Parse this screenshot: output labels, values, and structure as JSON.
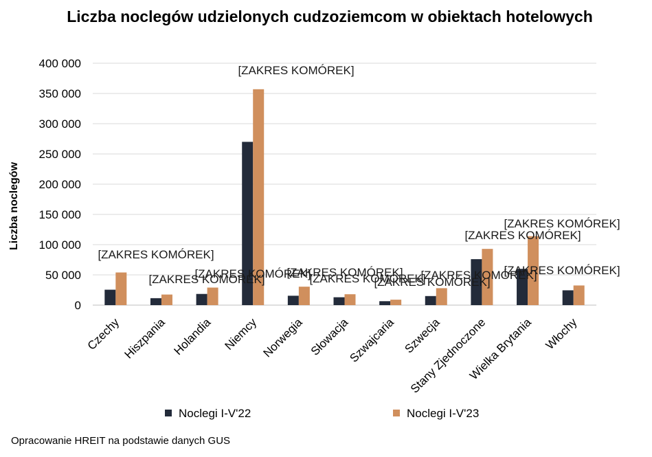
{
  "source_note": "Opracowanie HREIT na podstawie danych GUS",
  "chart_data": {
    "type": "bar",
    "title": "Liczba noclegów udzielonych cudzoziemcom w obiektach hotelowych",
    "xlabel": "",
    "ylabel": "Liczba noclegów",
    "ylim": [
      0,
      400000
    ],
    "yticks": [
      0,
      50000,
      100000,
      150000,
      200000,
      250000,
      300000,
      350000,
      400000
    ],
    "ytick_labels": [
      "0",
      "50 000",
      "100 000",
      "150 000",
      "200 000",
      "250 000",
      "300 000",
      "350 000",
      "400 000"
    ],
    "grid": true,
    "legend_position": "bottom",
    "categories": [
      "Czechy",
      "Hiszpania",
      "Holandia",
      "Niemcy",
      "Norwegia",
      "Słowacja",
      "Szwajcaria",
      "Szwecja",
      "Stany Zjednoczone",
      "Wielka Brytania",
      "Włochy"
    ],
    "series": [
      {
        "name": "Noclegi I-V'22",
        "color": "#232b3a",
        "values": [
          25500,
          11500,
          18500,
          270000,
          15500,
          13000,
          6500,
          15000,
          76000,
          60000,
          24500
        ]
      },
      {
        "name": "Noclegi I-V'23",
        "color": "#d08f5d",
        "values": [
          54000,
          17500,
          29000,
          357000,
          30500,
          18000,
          9000,
          28000,
          93000,
          114000,
          32500
        ]
      }
    ],
    "data_label_text": "[ZAKRES KOMÓREK]",
    "data_labels": [
      {
        "category": "Czechy",
        "text": "[ZAKRES KOMÓREK]"
      },
      {
        "category": "Hiszpania",
        "text": "[ZAKRES KOMÓREK]"
      },
      {
        "category": "Holandia",
        "text": "[ZAKRES KOMÓREK]"
      },
      {
        "category": "Niemcy",
        "text": "[ZAKRES KOMÓREK]"
      },
      {
        "category": "Norwegia",
        "text": "[ZAKRES KOMÓREK]"
      },
      {
        "category": "Słowacja",
        "text": "[ZAKRES KOMÓREK]"
      },
      {
        "category": "Szwajcaria",
        "text": "[ZAKRES KOMÓREK]"
      },
      {
        "category": "Szwecja",
        "text": "[ZAKRES KOMÓREK]"
      },
      {
        "category": "Stany Zjednoczone",
        "text": "[ZAKRES KOMÓREK]"
      },
      {
        "category": "Wielka Brytania",
        "text": "[ZAKRES KOMÓREK]"
      },
      {
        "category": "Wielka Brytania",
        "text": "[ZAKRES KOMÓREK]"
      }
    ]
  }
}
